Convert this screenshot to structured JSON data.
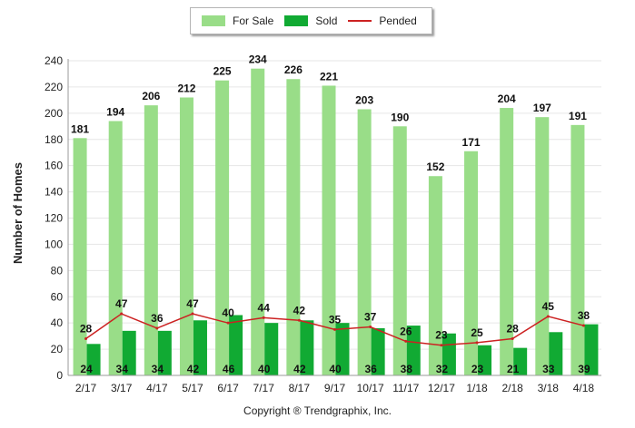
{
  "chart_data": {
    "type": "bar",
    "ylabel": "Number of Homes",
    "xlabel": "",
    "ylim": [
      0,
      240
    ],
    "yticks": [
      0,
      20,
      40,
      60,
      80,
      100,
      120,
      140,
      160,
      180,
      200,
      220,
      240
    ],
    "grid": true,
    "legend_position": "top-center",
    "categories": [
      "2/17",
      "3/17",
      "4/17",
      "5/17",
      "6/17",
      "7/17",
      "8/17",
      "9/17",
      "10/17",
      "11/17",
      "12/17",
      "1/18",
      "2/18",
      "3/18",
      "4/18"
    ],
    "series": [
      {
        "name": "For Sale",
        "kind": "bar",
        "color": "#99dd88",
        "values": [
          181,
          194,
          206,
          212,
          225,
          234,
          226,
          221,
          203,
          190,
          152,
          171,
          204,
          197,
          191
        ]
      },
      {
        "name": "Sold",
        "kind": "bar",
        "color": "#11aa33",
        "values": [
          24,
          34,
          34,
          42,
          46,
          40,
          42,
          40,
          36,
          38,
          32,
          23,
          21,
          33,
          39
        ]
      },
      {
        "name": "Pended",
        "kind": "line",
        "color": "#cc2222",
        "values": [
          28,
          47,
          36,
          47,
          40,
          44,
          42,
          35,
          37,
          26,
          23,
          25,
          28,
          45,
          38
        ]
      }
    ]
  },
  "footer": {
    "copyright": "Copyright ® Trendgraphix, Inc."
  }
}
